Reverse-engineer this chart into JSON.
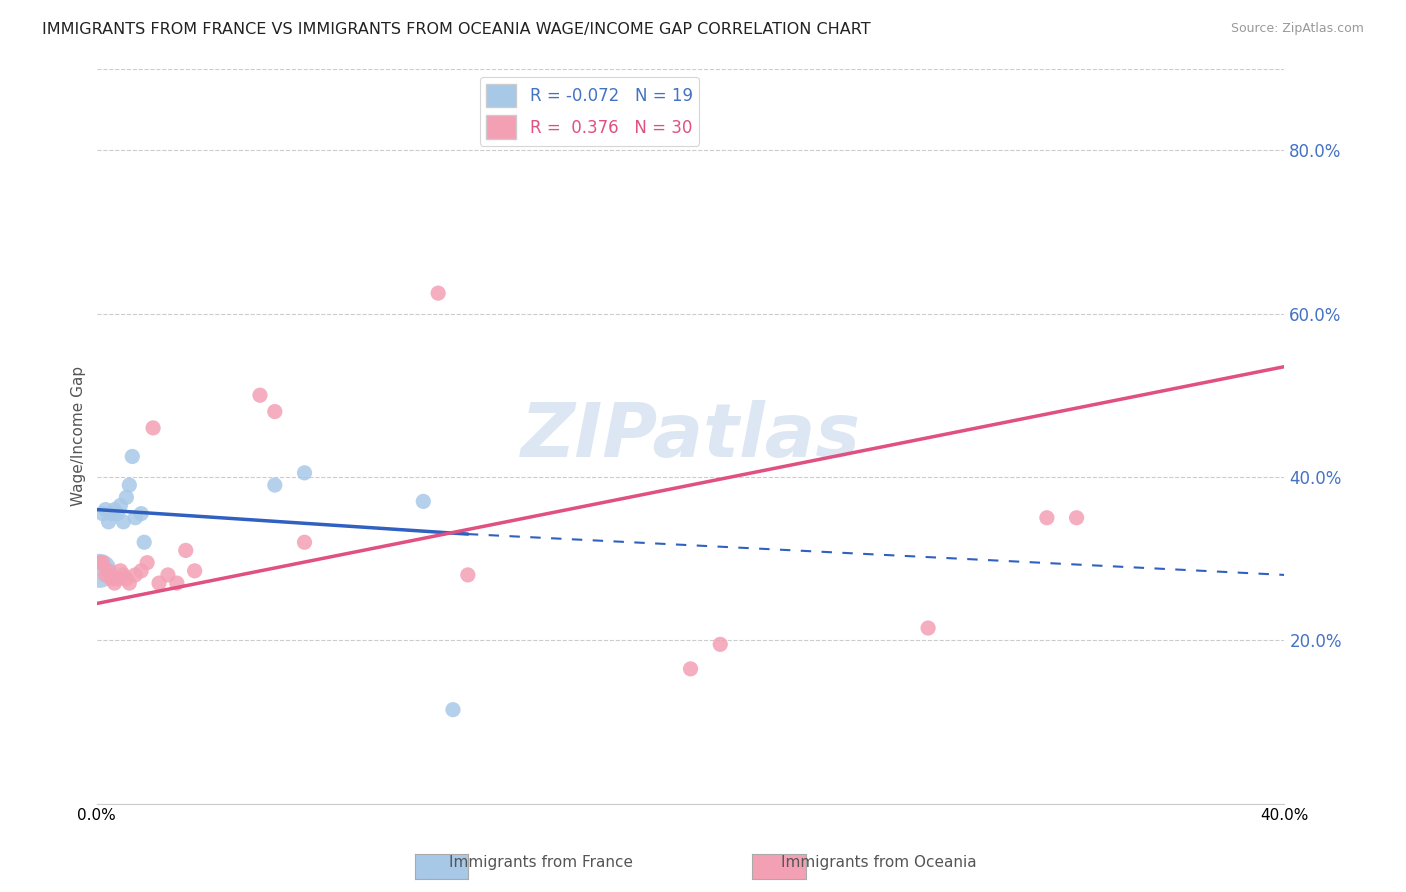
{
  "title": "IMMIGRANTS FROM FRANCE VS IMMIGRANTS FROM OCEANIA WAGE/INCOME GAP CORRELATION CHART",
  "source": "Source: ZipAtlas.com",
  "xlabel": "",
  "ylabel": "Wage/Income Gap",
  "xlim": [
    0.0,
    0.4
  ],
  "ylim": [
    0.0,
    0.9
  ],
  "ytick_vals": [
    0.0,
    0.2,
    0.4,
    0.6,
    0.8
  ],
  "ytick_labels_right": [
    "",
    "20.0%",
    "40.0%",
    "60.0%",
    "80.0%"
  ],
  "xtick_vals": [
    0.0,
    0.1,
    0.2,
    0.3,
    0.4
  ],
  "xtick_labels": [
    "0.0%",
    "",
    "",
    "",
    "40.0%"
  ],
  "france_R": -0.072,
  "france_N": 19,
  "oceania_R": 0.376,
  "oceania_N": 30,
  "france_color": "#a8c8e8",
  "oceania_color": "#f4a0b4",
  "france_line_color": "#3060c0",
  "oceania_line_color": "#e05080",
  "watermark": "ZIPatlas",
  "france_points_x": [
    0.001,
    0.002,
    0.003,
    0.004,
    0.005,
    0.006,
    0.007,
    0.008,
    0.009,
    0.01,
    0.011,
    0.012,
    0.013,
    0.015,
    0.016,
    0.06,
    0.07,
    0.11,
    0.12
  ],
  "france_points_y": [
    0.285,
    0.355,
    0.36,
    0.345,
    0.355,
    0.36,
    0.355,
    0.365,
    0.345,
    0.375,
    0.39,
    0.425,
    0.35,
    0.355,
    0.32,
    0.39,
    0.405,
    0.37,
    0.115
  ],
  "france_sizes": [
    600,
    120,
    120,
    120,
    120,
    120,
    120,
    120,
    120,
    120,
    120,
    120,
    120,
    120,
    120,
    120,
    120,
    120,
    120
  ],
  "oceania_points_x": [
    0.001,
    0.002,
    0.003,
    0.004,
    0.005,
    0.006,
    0.007,
    0.008,
    0.009,
    0.01,
    0.011,
    0.013,
    0.015,
    0.017,
    0.019,
    0.021,
    0.024,
    0.027,
    0.03,
    0.033,
    0.055,
    0.06,
    0.07,
    0.115,
    0.125,
    0.2,
    0.21,
    0.28,
    0.32,
    0.33
  ],
  "oceania_points_y": [
    0.295,
    0.295,
    0.28,
    0.285,
    0.275,
    0.27,
    0.275,
    0.285,
    0.28,
    0.275,
    0.27,
    0.28,
    0.285,
    0.295,
    0.46,
    0.27,
    0.28,
    0.27,
    0.31,
    0.285,
    0.5,
    0.48,
    0.32,
    0.625,
    0.28,
    0.165,
    0.195,
    0.215,
    0.35,
    0.35
  ],
  "oceania_sizes": [
    120,
    120,
    120,
    120,
    120,
    120,
    120,
    120,
    120,
    120,
    120,
    120,
    120,
    120,
    120,
    120,
    120,
    120,
    120,
    120,
    120,
    120,
    120,
    120,
    120,
    120,
    120,
    120,
    120,
    120
  ],
  "france_line_x0": 0.0,
  "france_line_y0": 0.36,
  "france_line_x1": 0.125,
  "france_line_y1": 0.33,
  "france_line_dash_x0": 0.125,
  "france_line_dash_y0": 0.33,
  "france_line_dash_x1": 0.4,
  "france_line_dash_y1": 0.28,
  "oceania_line_x0": 0.0,
  "oceania_line_y0": 0.245,
  "oceania_line_x1": 0.4,
  "oceania_line_y1": 0.535,
  "background_color": "#ffffff",
  "grid_color": "#cccccc"
}
